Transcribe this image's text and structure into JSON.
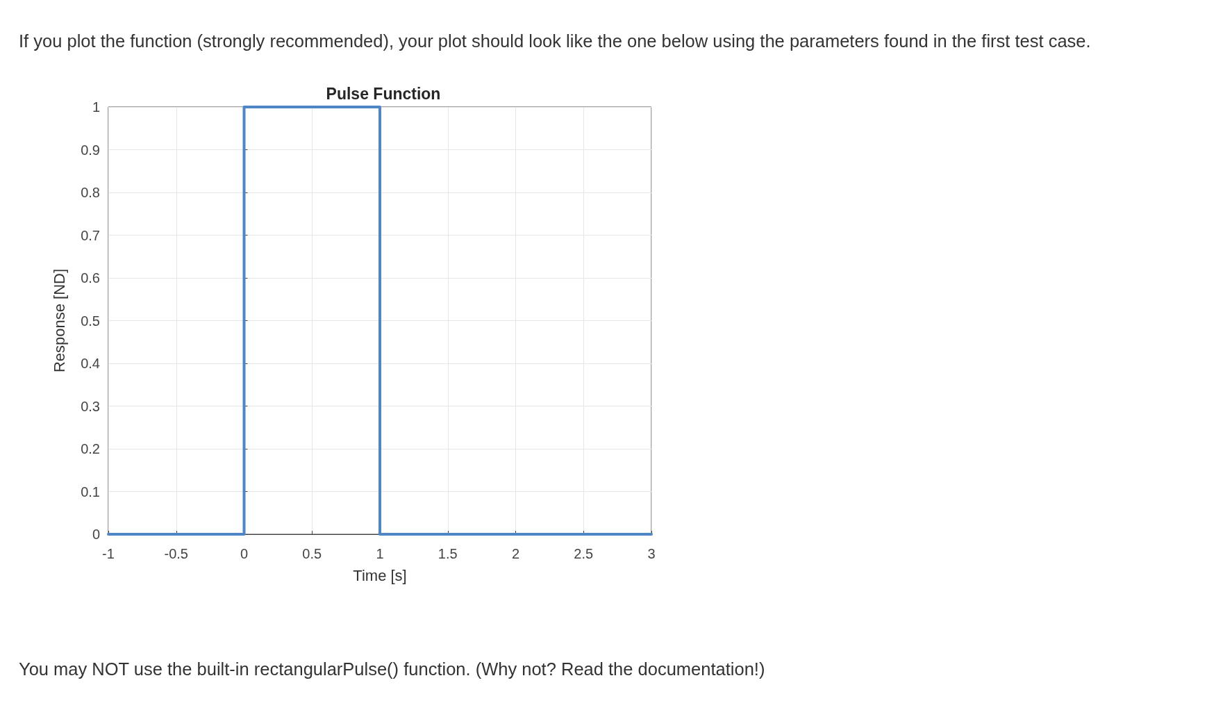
{
  "chart_data": {
    "type": "line",
    "title": "Pulse Function",
    "xlabel": "Time [s]",
    "ylabel": "Response [ND]",
    "annotations": [
      "If you plot the function (strongly recommended), your plot should look like the one below using the parameters found in the first test case.",
      "You may NOT use the built-in rectangularPulse() function. (Why not? Read the documentation!)"
    ],
    "x": [
      -1,
      0,
      0,
      1,
      1,
      3
    ],
    "series": [
      {
        "color": "#4f86c6",
        "values": [
          0,
          0,
          1,
          1,
          0,
          0
        ]
      }
    ],
    "xlim": [
      -1,
      3
    ],
    "xticks": [
      -1,
      -0.5,
      0,
      0.5,
      1,
      1.5,
      2,
      2.5,
      3
    ],
    "ylim": [
      0,
      1
    ],
    "yticks": [
      0,
      0.1,
      0.2,
      0.3,
      0.4,
      0.5,
      0.6,
      0.7,
      0.8,
      0.9,
      1
    ],
    "grid": true,
    "marker": "none",
    "line_style": "solid"
  }
}
